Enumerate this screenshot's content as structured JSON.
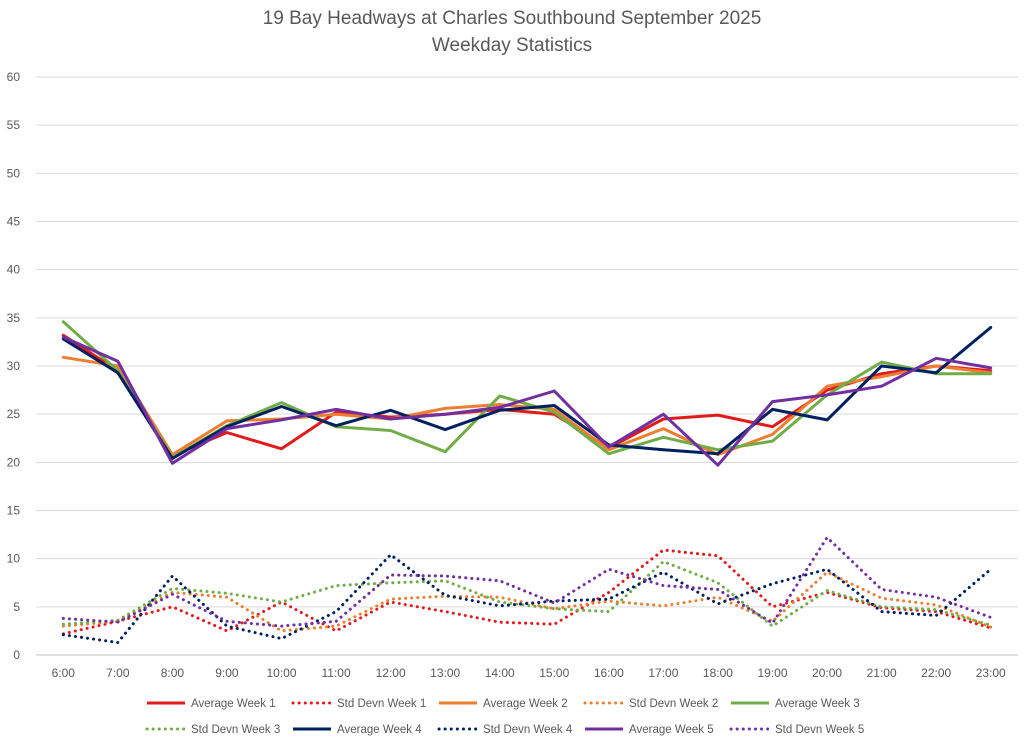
{
  "chart_data": {
    "type": "line",
    "title": "19 Bay Headways at Charles Southbound September 2025",
    "subtitle": "Weekday Statistics",
    "xlabel": "",
    "ylabel": "",
    "ylim": [
      0,
      60
    ],
    "yticks": [
      0,
      5,
      10,
      15,
      20,
      25,
      30,
      35,
      40,
      45,
      50,
      55,
      60
    ],
    "grid": true,
    "legend_position": "bottom",
    "categories": [
      "6:00",
      "7:00",
      "8:00",
      "9:00",
      "10:00",
      "11:00",
      "12:00",
      "13:00",
      "14:00",
      "15:00",
      "16:00",
      "17:00",
      "18:00",
      "19:00",
      "20:00",
      "21:00",
      "22:00",
      "23:00"
    ],
    "series": [
      {
        "name": "Average Week 1",
        "style": "solid",
        "color": "#e31a1c",
        "values": [
          33.2,
          29.5,
          20.7,
          23.1,
          21.4,
          25.2,
          24.7,
          25.0,
          25.5,
          25.0,
          21.5,
          24.5,
          24.9,
          23.7,
          27.5,
          29.2,
          30.0,
          29.5
        ]
      },
      {
        "name": "Std Devn Week 1",
        "style": "dotted",
        "color": "#e31a1c",
        "values": [
          2.2,
          3.5,
          5.0,
          2.5,
          5.5,
          2.5,
          5.5,
          4.5,
          3.4,
          3.2,
          6.5,
          10.9,
          10.3,
          5.0,
          6.5,
          4.9,
          4.5,
          2.8
        ]
      },
      {
        "name": "Average Week 2",
        "style": "solid",
        "color": "#ed7d31",
        "values": [
          30.9,
          30.0,
          20.8,
          24.3,
          24.5,
          25.0,
          24.5,
          25.6,
          26.0,
          25.5,
          21.3,
          23.5,
          20.8,
          22.9,
          27.9,
          28.9,
          30.0,
          29.3
        ]
      },
      {
        "name": "Std Devn Week 2",
        "style": "dotted",
        "color": "#ed7d31",
        "values": [
          3.0,
          3.5,
          6.5,
          6.0,
          2.5,
          3.0,
          5.8,
          6.1,
          6.0,
          4.8,
          5.6,
          5.1,
          6.0,
          3.5,
          8.6,
          5.9,
          5.2,
          2.9
        ]
      },
      {
        "name": "Average Week 3",
        "style": "solid",
        "color": "#70ad47",
        "values": [
          34.6,
          29.5,
          20.5,
          23.8,
          26.2,
          23.7,
          23.3,
          21.1,
          26.9,
          25.2,
          20.9,
          22.6,
          21.3,
          22.2,
          27.0,
          30.4,
          29.2,
          29.2
        ]
      },
      {
        "name": "Std Devn Week 3",
        "style": "dotted",
        "color": "#70ad47",
        "values": [
          3.2,
          3.6,
          6.9,
          6.4,
          5.5,
          7.2,
          7.5,
          7.7,
          5.5,
          4.8,
          4.5,
          9.7,
          7.5,
          3.0,
          6.7,
          5.0,
          4.7,
          3.1
        ]
      },
      {
        "name": "Average Week 4",
        "style": "solid",
        "color": "#002060",
        "values": [
          32.8,
          29.3,
          20.4,
          23.7,
          25.8,
          23.8,
          25.4,
          23.4,
          25.4,
          25.9,
          21.8,
          21.3,
          20.9,
          25.5,
          24.4,
          30.0,
          29.3,
          34.0
        ]
      },
      {
        "name": "Std Devn Week 4",
        "style": "dotted",
        "color": "#002060",
        "values": [
          2.1,
          1.3,
          8.2,
          3.0,
          1.7,
          4.5,
          10.4,
          6.2,
          5.1,
          5.6,
          5.8,
          8.6,
          5.3,
          7.4,
          8.9,
          4.5,
          4.1,
          8.9
        ]
      },
      {
        "name": "Average Week 5",
        "style": "solid",
        "color": "#7030a0",
        "values": [
          33.0,
          30.5,
          19.9,
          23.5,
          24.4,
          25.5,
          24.5,
          25.0,
          25.7,
          27.4,
          21.6,
          25.0,
          19.7,
          26.3,
          27.0,
          27.9,
          30.8,
          29.8
        ]
      },
      {
        "name": "Std Devn Week 5",
        "style": "dotted",
        "color": "#7030a0",
        "values": [
          3.8,
          3.4,
          6.3,
          3.5,
          3.0,
          3.5,
          8.3,
          8.2,
          7.7,
          5.4,
          8.9,
          7.2,
          6.8,
          3.3,
          12.2,
          6.8,
          6.0,
          3.9
        ]
      }
    ]
  }
}
